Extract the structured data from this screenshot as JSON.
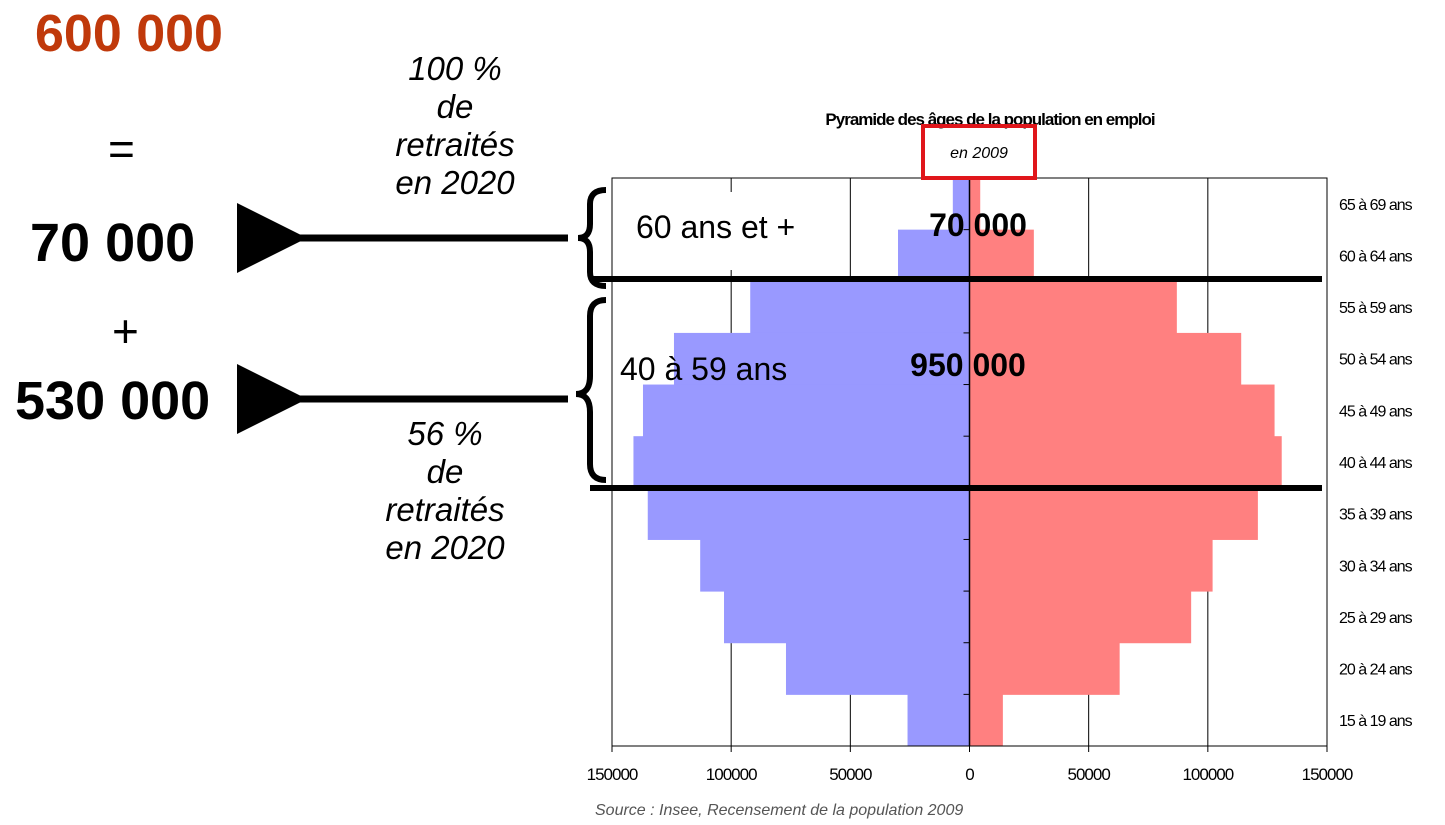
{
  "summary": {
    "total": "600 000",
    "equals": "=",
    "plus": "+",
    "group_old": "70 000",
    "group_mid": "530 000",
    "note_old": [
      "100 %",
      "de",
      "retraités",
      "en 2020"
    ],
    "note_mid": [
      "56 %",
      "de",
      "retraités",
      "en 2020"
    ]
  },
  "chart_data": {
    "type": "bar",
    "orientation": "horizontal-pyramid",
    "title": "Pyramide des âges de la population en emploi",
    "subtitle": "en 2009",
    "source": "Source : Insee, Recensement de la population 2009",
    "categories": [
      "65 à 69 ans",
      "60 à 64 ans",
      "55 à 59 ans",
      "50 à 54 ans",
      "45 à 49 ans",
      "40 à 44 ans",
      "35 à 39 ans",
      "30 à 34 ans",
      "25 à 29 ans",
      "20 à 24 ans",
      "15 à 19 ans"
    ],
    "series": [
      {
        "color": "#9999ff",
        "values": [
          7000,
          30000,
          92000,
          124000,
          137000,
          141000,
          135000,
          113000,
          103000,
          77000,
          26000
        ]
      },
      {
        "color": "#ff8080",
        "values": [
          4500,
          27000,
          87000,
          114000,
          128000,
          131000,
          121000,
          102000,
          93000,
          63000,
          14000
        ]
      }
    ],
    "x_ticks": [
      "150000",
      "100000",
      "50000",
      "0",
      "50000",
      "100000",
      "150000"
    ],
    "xlim": [
      -150000,
      150000
    ],
    "grid": "vertical",
    "annotations": [
      {
        "label": "60 ans et +",
        "value": "70 000"
      },
      {
        "label": "40 à 59 ans",
        "value": "950 000"
      }
    ]
  }
}
